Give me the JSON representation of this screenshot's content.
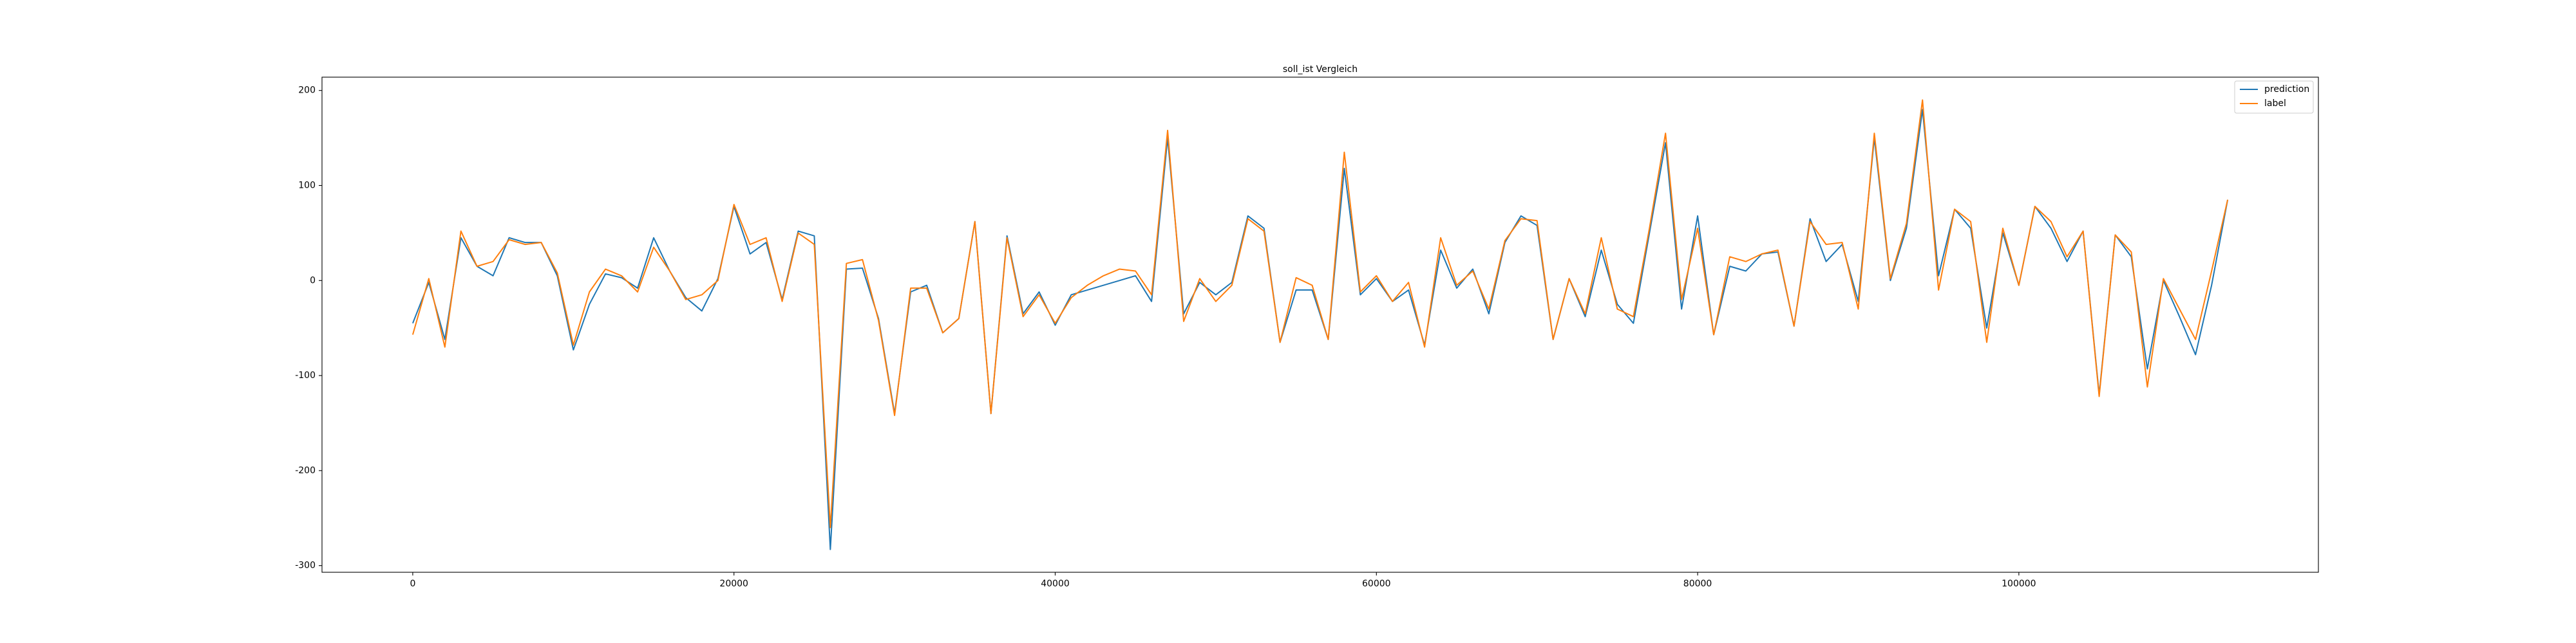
{
  "chart_data": {
    "type": "line",
    "title": "soll_ist Vergleich",
    "title_color": "#ff0000",
    "x": [
      0,
      1000,
      2000,
      3000,
      4000,
      5000,
      6000,
      7000,
      8000,
      9000,
      10000,
      11000,
      12000,
      13000,
      14000,
      15000,
      16000,
      17000,
      18000,
      19000,
      20000,
      21000,
      22000,
      23000,
      24000,
      25000,
      26000,
      27000,
      28000,
      29000,
      30000,
      31000,
      32000,
      33000,
      34000,
      35000,
      36000,
      37000,
      38000,
      39000,
      40000,
      41000,
      42000,
      43000,
      44000,
      45000,
      46000,
      47000,
      48000,
      49000,
      50000,
      51000,
      52000,
      53000,
      54000,
      55000,
      56000,
      57000,
      58000,
      59000,
      60000,
      61000,
      62000,
      63000,
      64000,
      65000,
      66000,
      67000,
      68000,
      69000,
      70000,
      71000,
      72000,
      73000,
      74000,
      75000,
      76000,
      77000,
      78000,
      79000,
      80000,
      81000,
      82000,
      83000,
      84000,
      85000,
      86000,
      87000,
      88000,
      89000,
      90000,
      91000,
      92000,
      93000,
      94000,
      95000,
      96000,
      97000,
      98000,
      99000,
      100000,
      101000,
      102000,
      103000,
      104000,
      105000,
      106000,
      107000,
      108000,
      109000,
      110000,
      111000,
      112000,
      113000
    ],
    "series": [
      {
        "name": "prediction",
        "color": "#1f77b4",
        "values": [
          -45,
          -2,
          -62,
          45,
          15,
          5,
          45,
          40,
          40,
          5,
          -73,
          -25,
          7,
          3,
          -8,
          45,
          10,
          -18,
          -32,
          2,
          78,
          28,
          40,
          -20,
          52,
          47,
          -283,
          12,
          13,
          -40,
          -140,
          -12,
          -5,
          -55,
          -40,
          62,
          -140,
          47,
          -35,
          -12,
          -47,
          -15,
          -10,
          -5,
          0,
          5,
          -22,
          150,
          -35,
          -2,
          -15,
          -2,
          68,
          55,
          -65,
          -10,
          -10,
          -62,
          118,
          -15,
          2,
          -22,
          -10,
          -68,
          32,
          -8,
          12,
          -35,
          40,
          68,
          58,
          -62,
          2,
          -38,
          32,
          -25,
          -45,
          50,
          145,
          -30,
          68,
          -57,
          15,
          10,
          28,
          30,
          -48,
          65,
          20,
          38,
          -22,
          150,
          0,
          55,
          180,
          5,
          75,
          55,
          -50,
          50,
          -5,
          78,
          55,
          20,
          52,
          -120,
          48,
          25,
          -93,
          0,
          -38,
          -78,
          -5,
          85
        ]
      },
      {
        "name": "label",
        "color": "#ff7f0e",
        "values": [
          -57,
          2,
          -70,
          52,
          15,
          20,
          43,
          38,
          40,
          8,
          -68,
          -12,
          12,
          5,
          -12,
          35,
          10,
          -20,
          -15,
          0,
          80,
          38,
          45,
          -22,
          50,
          38,
          -260,
          18,
          22,
          -42,
          -142,
          -8,
          -8,
          -55,
          -40,
          62,
          -140,
          45,
          -38,
          -15,
          -45,
          -18,
          -5,
          5,
          12,
          10,
          -15,
          158,
          -43,
          2,
          -22,
          -5,
          65,
          52,
          -65,
          3,
          -5,
          -62,
          135,
          -12,
          5,
          -22,
          -2,
          -70,
          45,
          -5,
          10,
          -30,
          42,
          65,
          63,
          -62,
          2,
          -35,
          45,
          -30,
          -38,
          55,
          155,
          -20,
          55,
          -57,
          25,
          20,
          28,
          32,
          -48,
          62,
          38,
          40,
          -30,
          155,
          2,
          60,
          190,
          -10,
          75,
          62,
          -65,
          55,
          -5,
          78,
          62,
          25,
          52,
          -122,
          48,
          30,
          -112,
          2,
          -30,
          -62,
          10,
          85
        ]
      }
    ],
    "xlim": [
      -5650,
      118650
    ],
    "ylim": [
      -307,
      214
    ],
    "xticks": [
      0,
      20000,
      40000,
      60000,
      80000,
      100000
    ],
    "yticks": [
      -300,
      -200,
      -100,
      0,
      100,
      200
    ],
    "legend": "upper right"
  }
}
